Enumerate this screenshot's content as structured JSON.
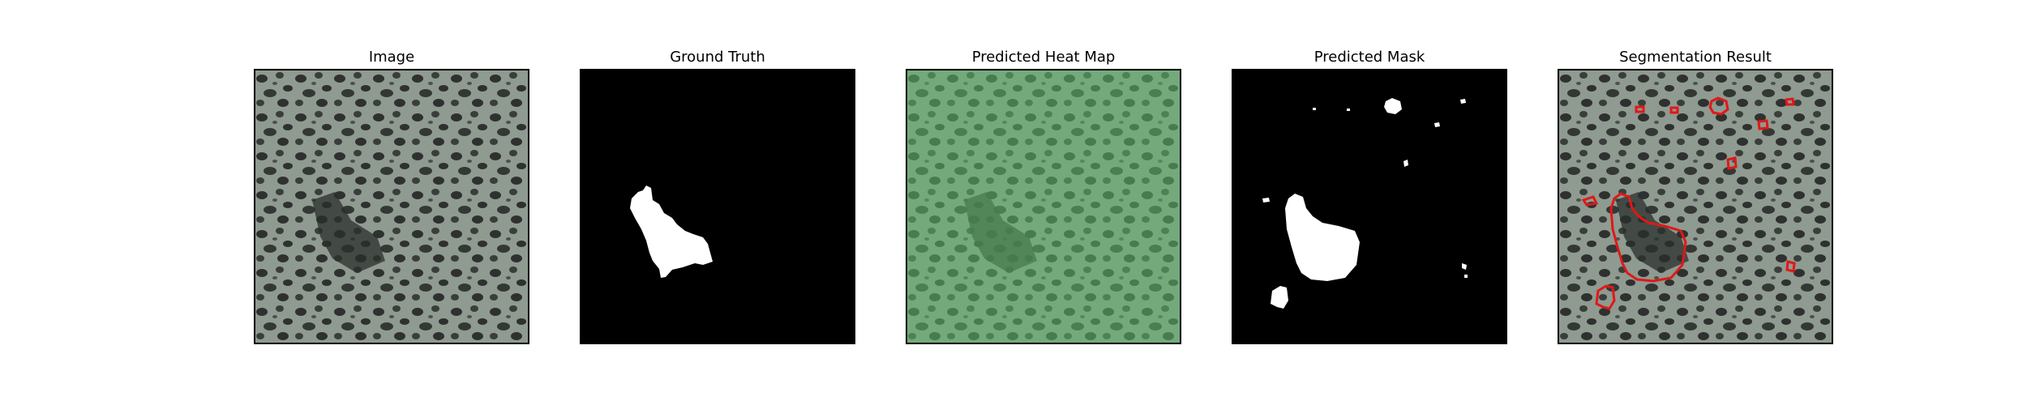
{
  "panels": [
    {
      "title": "Image",
      "kind": "image"
    },
    {
      "title": "Ground Truth",
      "kind": "ground-truth"
    },
    {
      "title": "Predicted Heat Map",
      "kind": "heatmap"
    },
    {
      "title": "Predicted Mask",
      "kind": "mask"
    },
    {
      "title": "Segmentation Result",
      "kind": "segmentation"
    }
  ],
  "colors": {
    "texture_light": "#8f9a90",
    "texture_dark": "#2e312f",
    "heatmap_tint": "#5fb86a",
    "mask_background": "#000000",
    "mask_foreground": "#ffffff",
    "contour": "#e01818"
  }
}
